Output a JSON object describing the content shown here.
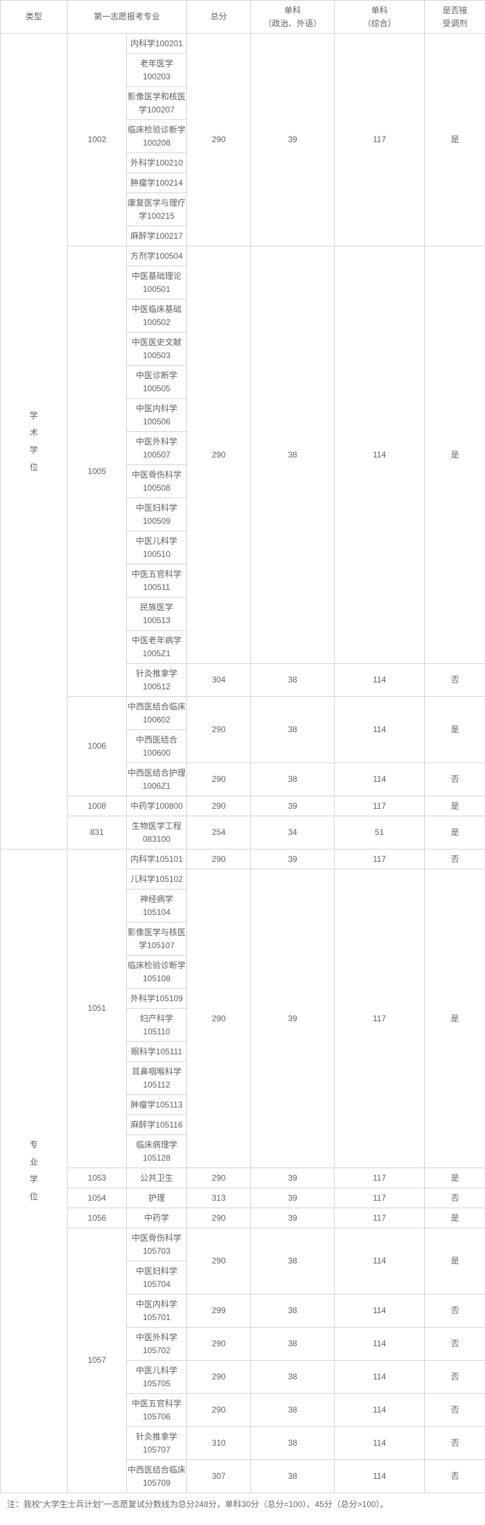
{
  "table": {
    "headers": {
      "type": "类型",
      "major": "第一志愿报考专业",
      "total": "总分",
      "single_politics_foreign": "单科\n（政治、外语）",
      "single_comprehensive": "单科\n（综合）",
      "accept_adjustment": "是否接\n受调剂"
    },
    "sections": [
      {
        "type": "学术学位",
        "groups": [
          {
            "code": "1002",
            "entries": [
              {
                "specialties": [
                  "内科学100201",
                  "老年医学\n100203",
                  "影像医学和核医\n学100207",
                  "临床检验诊断学\n100208",
                  "外科学100210",
                  "肿瘤学100214",
                  "康复医学与理疗\n学100215",
                  "麻醉学100217"
                ],
                "total": "290",
                "single1": "39",
                "single2": "117",
                "adjust": "是"
              }
            ]
          },
          {
            "code": "1005",
            "entries": [
              {
                "specialties": [
                  "方剂学100504",
                  "中医基础理论\n100501",
                  "中医临床基础\n100502",
                  "中医医史文献\n100503",
                  "中医诊断学\n100505",
                  "中医内科学\n100506",
                  "中医外科学\n100507",
                  "中医骨伤科学\n100508",
                  "中医妇科学\n100509",
                  "中医儿科学\n100510",
                  "中医五官科学\n100511",
                  "民族医学\n100513",
                  "中医老年病学\n1005Z1"
                ],
                "total": "290",
                "single1": "38",
                "single2": "114",
                "adjust": "是"
              },
              {
                "specialties": [
                  "针灸推拿学\n100512"
                ],
                "total": "304",
                "single1": "38",
                "single2": "114",
                "adjust": "否"
              }
            ]
          },
          {
            "code": "1006",
            "entries": [
              {
                "specialties": [
                  "中西医结合临床\n100602",
                  "中西医结合\n100600"
                ],
                "total": "290",
                "single1": "38",
                "single2": "114",
                "adjust": "是"
              },
              {
                "specialties": [
                  "中西医结合护理\n1006Z1"
                ],
                "total": "290",
                "single1": "38",
                "single2": "114",
                "adjust": "否"
              }
            ]
          },
          {
            "code": "1008",
            "entries": [
              {
                "specialties": [
                  "中药学100800"
                ],
                "total": "290",
                "single1": "39",
                "single2": "117",
                "adjust": "是"
              }
            ]
          },
          {
            "code": "831",
            "entries": [
              {
                "specialties": [
                  "生物医学工程\n083100"
                ],
                "total": "254",
                "single1": "34",
                "single2": "51",
                "adjust": "是"
              }
            ]
          }
        ]
      },
      {
        "type": "专业学位",
        "groups": [
          {
            "code": "1051",
            "entries": [
              {
                "specialties": [
                  "内科学105101"
                ],
                "total": "290",
                "single1": "39",
                "single2": "117",
                "adjust": "否"
              },
              {
                "specialties": [
                  "儿科学105102",
                  "神经病学\n105104",
                  "影像医学与核医\n学105107",
                  "临床检验诊断学\n105108",
                  "外科学105109",
                  "妇产科学\n105110",
                  "眼科学105111",
                  "耳鼻咽喉科学\n105112",
                  "肿瘤学105113",
                  "麻醉学105116",
                  "临床病理学\n105128"
                ],
                "total": "290",
                "single1": "39",
                "single2": "117",
                "adjust": "是"
              }
            ]
          },
          {
            "code": "1053",
            "entries": [
              {
                "specialties": [
                  "公共卫生"
                ],
                "total": "290",
                "single1": "39",
                "single2": "117",
                "adjust": "是"
              }
            ]
          },
          {
            "code": "1054",
            "entries": [
              {
                "specialties": [
                  "护理"
                ],
                "total": "313",
                "single1": "39",
                "single2": "117",
                "adjust": "否"
              }
            ]
          },
          {
            "code": "1056",
            "entries": [
              {
                "specialties": [
                  "中药学"
                ],
                "total": "290",
                "single1": "39",
                "single2": "117",
                "adjust": "是"
              }
            ]
          },
          {
            "code": "1057",
            "entries": [
              {
                "specialties": [
                  "中医骨伤科学\n105703",
                  "中医妇科学\n105704"
                ],
                "total": "290",
                "single1": "38",
                "single2": "114",
                "adjust": "是"
              },
              {
                "specialties": [
                  "中医内科学\n105701"
                ],
                "total": "299",
                "single1": "38",
                "single2": "114",
                "adjust": "否"
              },
              {
                "specialties": [
                  "中医外科学\n105702"
                ],
                "total": "290",
                "single1": "38",
                "single2": "114",
                "adjust": "否"
              },
              {
                "specialties": [
                  "中医儿科学\n105705"
                ],
                "total": "290",
                "single1": "38",
                "single2": "114",
                "adjust": "否"
              },
              {
                "specialties": [
                  "中医五官科学\n105706"
                ],
                "total": "290",
                "single1": "38",
                "single2": "114",
                "adjust": "否"
              },
              {
                "specialties": [
                  "针灸推拿学\n105707"
                ],
                "total": "310",
                "single1": "38",
                "single2": "114",
                "adjust": "否"
              },
              {
                "specialties": [
                  "中西医结合临床\n105709"
                ],
                "total": "307",
                "single1": "38",
                "single2": "114",
                "adjust": "否"
              }
            ]
          }
        ]
      }
    ]
  },
  "footnote": "注：我校“大学生士兵计划”一志愿复试分数线为总分248分，单科30分（总分=100）、45分（总分>100）。",
  "colors": {
    "border": "#d4d4d4",
    "text": "#5f5f5f"
  }
}
